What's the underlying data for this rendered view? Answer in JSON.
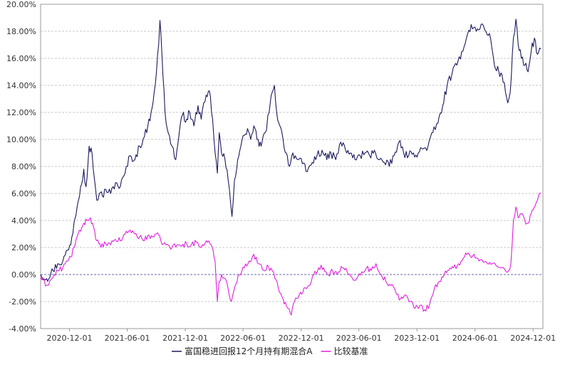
{
  "chart_data": {
    "type": "line",
    "title": "",
    "xlabel": "",
    "ylabel": "",
    "x_ticks": [
      "2020-12-01",
      "2021-06-01",
      "2021-12-01",
      "2022-06-01",
      "2022-12-01",
      "2023-06-01",
      "2023-12-01",
      "2024-06-01",
      "2024-12-01"
    ],
    "y_ticks": [
      "20.00%",
      "18.00%",
      "16.00%",
      "14.00%",
      "12.00%",
      "10.00%",
      "8.00%",
      "6.00%",
      "4.00%",
      "2.00%",
      "0.00%",
      "-2.00%",
      "-4.00%"
    ],
    "ylim": [
      -4,
      20
    ],
    "xlim": [
      "2020-09-01",
      "2025-01-01"
    ],
    "grid": "horizontal dashed",
    "legend_position": "bottom",
    "series": [
      {
        "name": "富国稳进回报12个月持有期混合A",
        "color": "#1a1a5e",
        "points": [
          [
            "2020-09-01",
            0.0
          ],
          [
            "2020-09-20",
            -0.3
          ],
          [
            "2020-10-10",
            0.3
          ],
          [
            "2020-10-25",
            0.8
          ],
          [
            "2020-11-10",
            1.0
          ],
          [
            "2020-11-25",
            1.8
          ],
          [
            "2020-12-05",
            2.2
          ],
          [
            "2020-12-15",
            3.8
          ],
          [
            "2020-12-25",
            5.0
          ],
          [
            "2021-01-05",
            6.5
          ],
          [
            "2021-01-15",
            7.8
          ],
          [
            "2021-01-22",
            6.5
          ],
          [
            "2021-02-01",
            9.5
          ],
          [
            "2021-02-10",
            9.0
          ],
          [
            "2021-02-18",
            7.0
          ],
          [
            "2021-02-25",
            5.5
          ],
          [
            "2021-03-05",
            6.0
          ],
          [
            "2021-03-15",
            5.8
          ],
          [
            "2021-03-25",
            6.3
          ],
          [
            "2021-04-10",
            6.0
          ],
          [
            "2021-04-25",
            6.8
          ],
          [
            "2021-05-10",
            6.5
          ],
          [
            "2021-05-25",
            7.5
          ],
          [
            "2021-06-10",
            8.8
          ],
          [
            "2021-06-25",
            8.5
          ],
          [
            "2021-07-10",
            9.5
          ],
          [
            "2021-07-25",
            10.2
          ],
          [
            "2021-08-05",
            11.0
          ],
          [
            "2021-08-15",
            12.0
          ],
          [
            "2021-08-25",
            13.5
          ],
          [
            "2021-09-01",
            15.0
          ],
          [
            "2021-09-08",
            17.0
          ],
          [
            "2021-09-12",
            18.8
          ],
          [
            "2021-09-18",
            16.5
          ],
          [
            "2021-09-28",
            12.0
          ],
          [
            "2021-10-08",
            10.5
          ],
          [
            "2021-10-20",
            9.5
          ],
          [
            "2021-11-01",
            8.5
          ],
          [
            "2021-11-12",
            10.5
          ],
          [
            "2021-11-22",
            11.8
          ],
          [
            "2021-12-05",
            11.5
          ],
          [
            "2021-12-15",
            12.0
          ],
          [
            "2021-12-28",
            11.0
          ],
          [
            "2022-01-10",
            12.5
          ],
          [
            "2022-01-20",
            11.5
          ],
          [
            "2022-02-01",
            12.8
          ],
          [
            "2022-02-15",
            13.6
          ],
          [
            "2022-02-25",
            11.5
          ],
          [
            "2022-03-05",
            9.0
          ],
          [
            "2022-03-12",
            7.5
          ],
          [
            "2022-03-18",
            10.5
          ],
          [
            "2022-03-25",
            9.0
          ],
          [
            "2022-04-05",
            8.5
          ],
          [
            "2022-04-15",
            7.0
          ],
          [
            "2022-04-22",
            5.5
          ],
          [
            "2022-04-27",
            4.3
          ],
          [
            "2022-05-05",
            7.0
          ],
          [
            "2022-05-15",
            8.5
          ],
          [
            "2022-05-25",
            9.5
          ],
          [
            "2022-06-05",
            10.3
          ],
          [
            "2022-06-15",
            10.8
          ],
          [
            "2022-06-25",
            10.0
          ],
          [
            "2022-07-05",
            11.0
          ],
          [
            "2022-07-15",
            10.0
          ],
          [
            "2022-07-28",
            9.5
          ],
          [
            "2022-08-10",
            10.5
          ],
          [
            "2022-08-22",
            12.0
          ],
          [
            "2022-09-01",
            13.5
          ],
          [
            "2022-09-08",
            14.0
          ],
          [
            "2022-09-15",
            12.0
          ],
          [
            "2022-09-25",
            11.0
          ],
          [
            "2022-10-05",
            10.0
          ],
          [
            "2022-10-15",
            9.0
          ],
          [
            "2022-10-25",
            8.0
          ],
          [
            "2022-11-05",
            9.0
          ],
          [
            "2022-11-20",
            8.5
          ],
          [
            "2022-12-05",
            8.2
          ],
          [
            "2022-12-20",
            7.6
          ],
          [
            "2023-01-05",
            8.3
          ],
          [
            "2023-01-20",
            8.8
          ],
          [
            "2023-02-05",
            9.2
          ],
          [
            "2023-02-20",
            8.5
          ],
          [
            "2023-03-05",
            9.0
          ],
          [
            "2023-03-20",
            8.5
          ],
          [
            "2023-04-05",
            9.8
          ],
          [
            "2023-04-20",
            9.2
          ],
          [
            "2023-05-05",
            9.0
          ],
          [
            "2023-05-20",
            8.5
          ],
          [
            "2023-06-05",
            8.8
          ],
          [
            "2023-06-20",
            9.0
          ],
          [
            "2023-07-05",
            8.8
          ],
          [
            "2023-07-20",
            9.2
          ],
          [
            "2023-08-05",
            8.5
          ],
          [
            "2023-08-20",
            8.3
          ],
          [
            "2023-09-05",
            8.0
          ],
          [
            "2023-09-20",
            8.8
          ],
          [
            "2023-10-05",
            9.8
          ],
          [
            "2023-10-20",
            9.0
          ],
          [
            "2023-11-05",
            8.8
          ],
          [
            "2023-11-20",
            9.0
          ],
          [
            "2023-12-05",
            9.0
          ],
          [
            "2023-12-20",
            9.3
          ],
          [
            "2024-01-05",
            9.5
          ],
          [
            "2024-01-20",
            10.5
          ],
          [
            "2024-02-05",
            11.2
          ],
          [
            "2024-02-20",
            12.5
          ],
          [
            "2024-03-05",
            14.0
          ],
          [
            "2024-03-20",
            14.8
          ],
          [
            "2024-04-05",
            15.5
          ],
          [
            "2024-04-20",
            16.5
          ],
          [
            "2024-05-05",
            17.5
          ],
          [
            "2024-05-20",
            18.5
          ],
          [
            "2024-06-05",
            18.0
          ],
          [
            "2024-06-20",
            18.5
          ],
          [
            "2024-07-05",
            18.0
          ],
          [
            "2024-07-20",
            17.5
          ],
          [
            "2024-08-01",
            15.5
          ],
          [
            "2024-08-15",
            15.0
          ],
          [
            "2024-08-25",
            14.8
          ],
          [
            "2024-09-05",
            13.5
          ],
          [
            "2024-09-12",
            12.7
          ],
          [
            "2024-09-20",
            13.5
          ],
          [
            "2024-09-30",
            17.5
          ],
          [
            "2024-10-08",
            18.9
          ],
          [
            "2024-10-15",
            17.0
          ],
          [
            "2024-10-25",
            16.0
          ],
          [
            "2024-11-05",
            15.5
          ],
          [
            "2024-11-15",
            15.0
          ],
          [
            "2024-11-25",
            16.5
          ],
          [
            "2024-12-05",
            17.5
          ],
          [
            "2024-12-15",
            16.3
          ],
          [
            "2024-12-25",
            16.7
          ]
        ]
      },
      {
        "name": "比较基准",
        "color": "#e020e0",
        "points": [
          [
            "2020-09-01",
            -0.2
          ],
          [
            "2020-09-20",
            -0.8
          ],
          [
            "2020-10-10",
            -0.2
          ],
          [
            "2020-10-25",
            0.3
          ],
          [
            "2020-11-10",
            0.5
          ],
          [
            "2020-11-25",
            1.0
          ],
          [
            "2020-12-05",
            1.3
          ],
          [
            "2020-12-15",
            2.0
          ],
          [
            "2020-12-25",
            2.8
          ],
          [
            "2021-01-05",
            3.2
          ],
          [
            "2021-01-15",
            3.8
          ],
          [
            "2021-01-25",
            4.0
          ],
          [
            "2021-02-05",
            4.2
          ],
          [
            "2021-02-15",
            3.5
          ],
          [
            "2021-02-25",
            2.5
          ],
          [
            "2021-03-10",
            2.0
          ],
          [
            "2021-03-25",
            2.3
          ],
          [
            "2021-04-10",
            2.2
          ],
          [
            "2021-04-25",
            2.6
          ],
          [
            "2021-05-10",
            2.5
          ],
          [
            "2021-05-25",
            3.0
          ],
          [
            "2021-06-10",
            3.3
          ],
          [
            "2021-06-25",
            3.0
          ],
          [
            "2021-07-10",
            2.8
          ],
          [
            "2021-07-25",
            2.5
          ],
          [
            "2021-08-05",
            2.9
          ],
          [
            "2021-08-20",
            2.8
          ],
          [
            "2021-09-01",
            3.0
          ],
          [
            "2021-09-15",
            2.5
          ],
          [
            "2021-10-01",
            2.2
          ],
          [
            "2021-10-20",
            2.0
          ],
          [
            "2021-11-05",
            2.2
          ],
          [
            "2021-11-20",
            2.1
          ],
          [
            "2021-12-05",
            2.3
          ],
          [
            "2021-12-20",
            2.2
          ],
          [
            "2022-01-05",
            2.4
          ],
          [
            "2022-01-20",
            2.0
          ],
          [
            "2022-02-05",
            2.5
          ],
          [
            "2022-02-20",
            2.2
          ],
          [
            "2022-03-05",
            1.0
          ],
          [
            "2022-03-12",
            -2.0
          ],
          [
            "2022-03-18",
            -0.5
          ],
          [
            "2022-03-25",
            0.0
          ],
          [
            "2022-04-10",
            -0.5
          ],
          [
            "2022-04-25",
            -2.0
          ],
          [
            "2022-05-05",
            -1.0
          ],
          [
            "2022-05-20",
            0.0
          ],
          [
            "2022-06-05",
            0.5
          ],
          [
            "2022-06-20",
            1.0
          ],
          [
            "2022-07-05",
            1.5
          ],
          [
            "2022-07-20",
            0.8
          ],
          [
            "2022-08-05",
            0.3
          ],
          [
            "2022-08-20",
            0.6
          ],
          [
            "2022-09-05",
            0.2
          ],
          [
            "2022-09-20",
            -1.0
          ],
          [
            "2022-10-05",
            -1.8
          ],
          [
            "2022-10-20",
            -2.5
          ],
          [
            "2022-10-31",
            -3.0
          ],
          [
            "2022-11-10",
            -2.0
          ],
          [
            "2022-11-25",
            -1.5
          ],
          [
            "2022-12-10",
            -1.0
          ],
          [
            "2022-12-25",
            -0.8
          ],
          [
            "2023-01-10",
            0.0
          ],
          [
            "2023-01-25",
            0.5
          ],
          [
            "2023-02-10",
            0.5
          ],
          [
            "2023-02-25",
            0.0
          ],
          [
            "2023-03-10",
            0.3
          ],
          [
            "2023-03-25",
            0.0
          ],
          [
            "2023-04-10",
            0.5
          ],
          [
            "2023-04-25",
            0.2
          ],
          [
            "2023-05-10",
            -0.2
          ],
          [
            "2023-05-25",
            -0.3
          ],
          [
            "2023-06-10",
            0.2
          ],
          [
            "2023-06-25",
            0.5
          ],
          [
            "2023-07-10",
            0.3
          ],
          [
            "2023-07-25",
            0.8
          ],
          [
            "2023-08-10",
            0.0
          ],
          [
            "2023-08-25",
            -0.5
          ],
          [
            "2023-09-10",
            -0.8
          ],
          [
            "2023-09-25",
            -1.3
          ],
          [
            "2023-10-10",
            -1.8
          ],
          [
            "2023-10-25",
            -1.5
          ],
          [
            "2023-11-10",
            -2.0
          ],
          [
            "2023-11-25",
            -2.5
          ],
          [
            "2023-12-10",
            -2.3
          ],
          [
            "2023-12-25",
            -2.6
          ],
          [
            "2024-01-10",
            -2.2
          ],
          [
            "2024-01-25",
            -1.0
          ],
          [
            "2024-02-10",
            -0.5
          ],
          [
            "2024-02-25",
            0.0
          ],
          [
            "2024-03-10",
            0.3
          ],
          [
            "2024-03-25",
            0.5
          ],
          [
            "2024-04-10",
            0.8
          ],
          [
            "2024-04-25",
            1.2
          ],
          [
            "2024-05-10",
            1.6
          ],
          [
            "2024-05-25",
            1.4
          ],
          [
            "2024-06-10",
            1.2
          ],
          [
            "2024-06-25",
            1.0
          ],
          [
            "2024-07-10",
            0.8
          ],
          [
            "2024-07-25",
            0.8
          ],
          [
            "2024-08-10",
            0.6
          ],
          [
            "2024-08-25",
            0.5
          ],
          [
            "2024-09-05",
            0.3
          ],
          [
            "2024-09-15",
            0.3
          ],
          [
            "2024-09-22",
            0.8
          ],
          [
            "2024-09-30",
            4.0
          ],
          [
            "2024-10-08",
            5.0
          ],
          [
            "2024-10-15",
            4.2
          ],
          [
            "2024-10-25",
            4.5
          ],
          [
            "2024-11-05",
            4.0
          ],
          [
            "2024-11-15",
            3.8
          ],
          [
            "2024-11-25",
            4.5
          ],
          [
            "2024-12-05",
            5.0
          ],
          [
            "2024-12-15",
            5.5
          ],
          [
            "2024-12-25",
            6.0
          ]
        ]
      }
    ]
  }
}
